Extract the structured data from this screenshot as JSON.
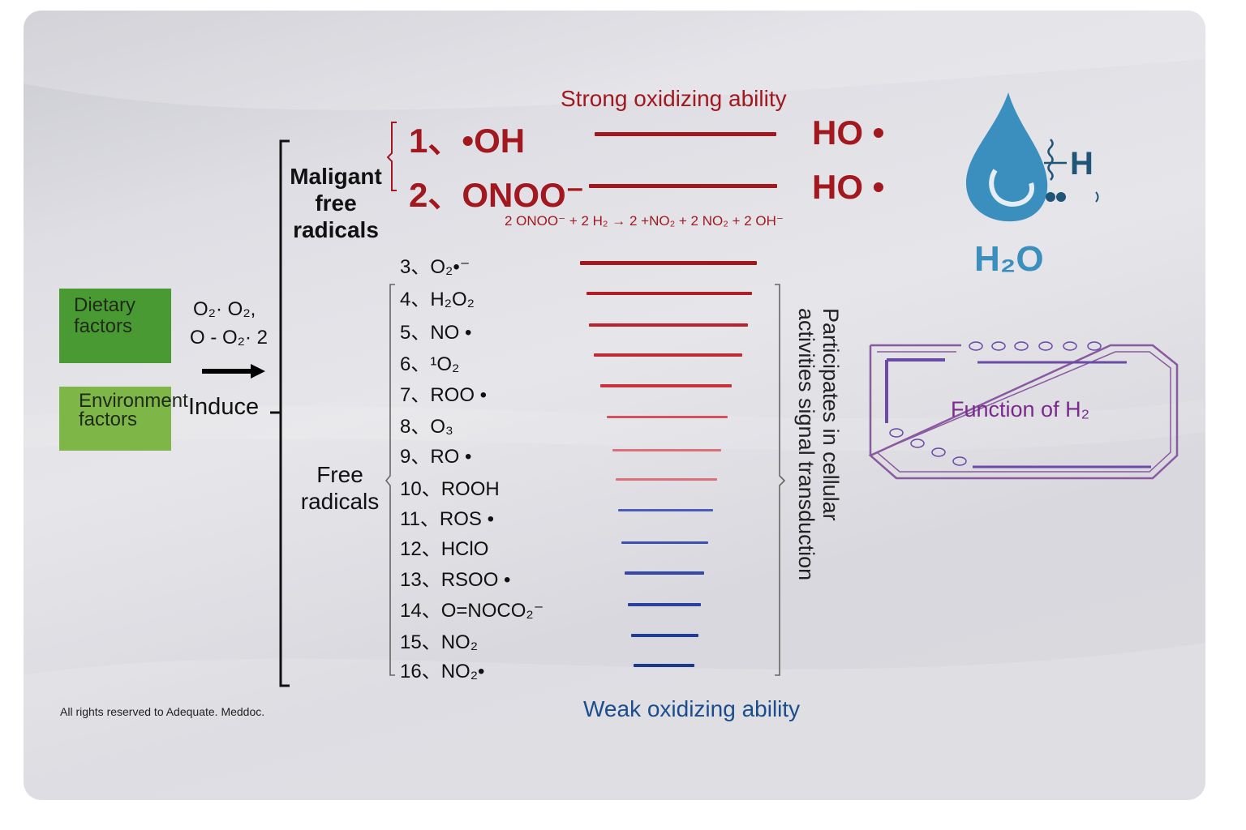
{
  "header": {
    "strong_label": "Strong oxidizing ability",
    "weak_label": "Weak oxidizing ability"
  },
  "colors": {
    "dark_red": "#a1181f",
    "red": "#c8323c",
    "pink": "#d9707a",
    "blue": "#3b4fb0",
    "navy": "#1b3a8c",
    "green": "#4a9a33",
    "light_green": "#7fb648",
    "water": "#3a8fbe",
    "purple": "#7a2a8c"
  },
  "malignant": {
    "title": "Maligant\nfree\nradicals",
    "items": [
      {
        "label": "1、•OH",
        "product": "HO •"
      },
      {
        "label": "2、ONOO⁻",
        "product": "HO •"
      }
    ],
    "equation": "2 ONOO⁻ + 2 H₂ → 2 +NO₂ + 2 NO₂ + 2 OH⁻"
  },
  "free": {
    "title": "Free\nradicals",
    "items": [
      {
        "label": "3、O₂•⁻"
      },
      {
        "label": "4、H₂O₂"
      },
      {
        "label": "5、NO •"
      },
      {
        "label": "6、¹O₂"
      },
      {
        "label": "7、ROO •"
      },
      {
        "label": "8、O₃"
      },
      {
        "label": "9、RO •"
      },
      {
        "label": "10、ROOH"
      },
      {
        "label": "11、ROS •"
      },
      {
        "label": "12、HClO"
      },
      {
        "label": "13、RSOO •"
      },
      {
        "label": "14、O=NOCO₂⁻"
      },
      {
        "label": "15、NO₂"
      },
      {
        "label": "16、NO₂•"
      }
    ]
  },
  "factors": {
    "dietary": "Dietary factors",
    "environment": "Environment factors"
  },
  "formula_1": "O₂· O₂,",
  "formula_2": "O - O₂· 2",
  "induce": "Induce",
  "side_note": "Participates in cellular activities signal transduction",
  "water": {
    "h_label": "H",
    "formula": "H₂O"
  },
  "function_label": "Function of H₂",
  "footer": "All rights reserved to Adequate. Meddoc."
}
